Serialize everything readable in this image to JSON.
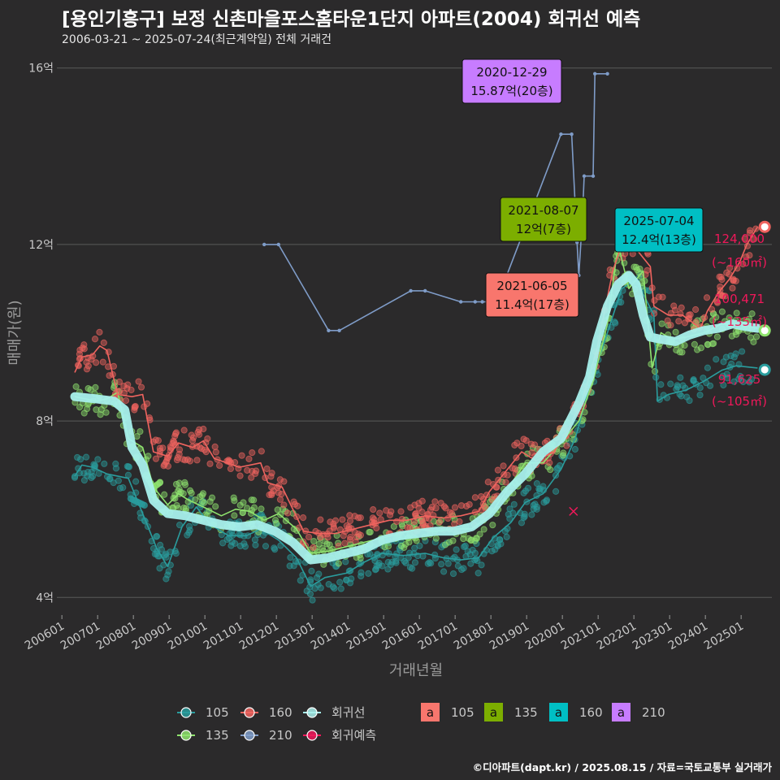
{
  "header": {
    "title": "[용인기흥구] 보정 신촌마을포스홈타운1단지 아파트(2004) 회귀선 예측",
    "subtitle": "2006-03-21 ~ 2025-07-24(최근계약일) 전체 거래건"
  },
  "footer": {
    "credit": "©디아파트(dapt.kr) / 2025.08.15 / 자료=국토교통부 실거래가"
  },
  "colors": {
    "background": "#2b2a2b",
    "grid": "#5a5a5a",
    "area_105": "#2a9d9e",
    "area_135": "#8fe36e",
    "area_160": "#f0645f",
    "area_210": "#7f9cc8",
    "regression": "#a8f0ec",
    "forecast": "#f0185a",
    "box_105": "#f8766d",
    "box_135": "#7cae00",
    "box_160": "#00bfc4",
    "box_210": "#c77cff"
  },
  "chart_data": {
    "type": "line",
    "title": "[용인기흥구] 보정 신촌마을포스홈타운1단지 아파트(2004) 회귀선 예측",
    "xlabel": "거래년월",
    "ylabel": "매매가(원)",
    "x_ticks": [
      "200601",
      "200701",
      "200801",
      "200901",
      "201001",
      "201101",
      "201201",
      "201301",
      "201401",
      "201501",
      "201601",
      "201701",
      "201801",
      "201901",
      "202001",
      "202101",
      "202201",
      "202301",
      "202401",
      "202501"
    ],
    "y_ticks": [
      {
        "value": 4,
        "label": "4억"
      },
      {
        "value": 8,
        "label": "8억"
      },
      {
        "value": 12,
        "label": "12억"
      },
      {
        "value": 16,
        "label": "16억"
      }
    ],
    "xlim": [
      2005.9,
      2025.9
    ],
    "ylim": [
      3.6,
      16.4
    ],
    "units": "억",
    "series": [
      {
        "name": "105",
        "color": "#2a9d9e",
        "points": [
          [
            2006.4,
            6.75
          ],
          [
            2006.6,
            7.0
          ],
          [
            2006.9,
            6.95
          ],
          [
            2007.3,
            6.8
          ],
          [
            2007.9,
            6.7
          ],
          [
            2008.7,
            5.1
          ],
          [
            2009.0,
            4.7
          ],
          [
            2009.4,
            5.6
          ],
          [
            2009.8,
            6.05
          ],
          [
            2010.2,
            5.65
          ],
          [
            2010.7,
            5.4
          ],
          [
            2011.2,
            5.4
          ],
          [
            2011.6,
            5.55
          ],
          [
            2012.1,
            5.3
          ],
          [
            2012.6,
            4.9
          ],
          [
            2013.0,
            4.25
          ],
          [
            2013.4,
            4.45
          ],
          [
            2014.0,
            4.55
          ],
          [
            2014.5,
            4.8
          ],
          [
            2015.0,
            5.0
          ],
          [
            2015.6,
            4.95
          ],
          [
            2016.2,
            5.0
          ],
          [
            2016.7,
            4.9
          ],
          [
            2017.2,
            4.85
          ],
          [
            2017.7,
            4.9
          ],
          [
            2018.1,
            5.35
          ],
          [
            2018.6,
            5.7
          ],
          [
            2019.0,
            6.15
          ],
          [
            2019.5,
            6.35
          ],
          [
            2020.0,
            6.9
          ],
          [
            2020.4,
            7.6
          ],
          [
            2020.8,
            8.8
          ],
          [
            2021.3,
            10.0
          ],
          [
            2021.7,
            11.0
          ],
          [
            2022.1,
            11.2
          ],
          [
            2022.6,
            10.4
          ],
          [
            2022.7,
            8.45
          ],
          [
            2023.0,
            8.6
          ],
          [
            2023.5,
            8.7
          ],
          [
            2024.0,
            8.9
          ],
          [
            2024.5,
            9.15
          ],
          [
            2024.9,
            9.25
          ],
          [
            2025.5,
            9.2
          ]
        ]
      },
      {
        "name": "135",
        "color": "#8fe36e",
        "points": [
          [
            2006.4,
            8.55
          ],
          [
            2006.7,
            8.5
          ],
          [
            2007.0,
            8.45
          ],
          [
            2007.3,
            8.5
          ],
          [
            2007.6,
            8.65
          ],
          [
            2007.9,
            7.6
          ],
          [
            2008.3,
            7.4
          ],
          [
            2008.6,
            6.5
          ],
          [
            2009.0,
            6.1
          ],
          [
            2009.3,
            6.35
          ],
          [
            2009.6,
            6.2
          ],
          [
            2010.0,
            6.05
          ],
          [
            2010.5,
            5.85
          ],
          [
            2010.9,
            6.0
          ],
          [
            2011.3,
            5.95
          ],
          [
            2011.7,
            5.75
          ],
          [
            2012.1,
            5.9
          ],
          [
            2012.6,
            5.55
          ],
          [
            2013.0,
            5.0
          ],
          [
            2013.5,
            5.05
          ],
          [
            2014.0,
            5.15
          ],
          [
            2014.5,
            5.25
          ],
          [
            2015.0,
            5.35
          ],
          [
            2015.5,
            5.45
          ],
          [
            2016.0,
            5.55
          ],
          [
            2016.5,
            5.5
          ],
          [
            2017.0,
            5.55
          ],
          [
            2017.5,
            5.55
          ],
          [
            2018.0,
            5.85
          ],
          [
            2018.5,
            6.45
          ],
          [
            2019.0,
            7.05
          ],
          [
            2019.5,
            7.05
          ],
          [
            2020.0,
            7.5
          ],
          [
            2020.5,
            8.0
          ],
          [
            2020.9,
            8.9
          ],
          [
            2021.3,
            10.2
          ],
          [
            2021.6,
            12.0
          ],
          [
            2021.9,
            11.0
          ],
          [
            2022.3,
            11.4
          ],
          [
            2022.55,
            9.2
          ],
          [
            2022.8,
            10.0
          ],
          [
            2023.1,
            9.85
          ],
          [
            2023.5,
            9.9
          ],
          [
            2024.0,
            10.0
          ],
          [
            2024.5,
            10.2
          ],
          [
            2024.9,
            10.2
          ],
          [
            2025.5,
            10.1
          ]
        ]
      },
      {
        "name": "160",
        "color": "#f0645f",
        "points": [
          [
            2006.4,
            9.1
          ],
          [
            2006.6,
            9.45
          ],
          [
            2006.9,
            9.5
          ],
          [
            2007.1,
            9.7
          ],
          [
            2007.3,
            9.6
          ],
          [
            2007.6,
            8.6
          ],
          [
            2008.0,
            8.55
          ],
          [
            2008.3,
            8.6
          ],
          [
            2008.6,
            7.3
          ],
          [
            2009.0,
            7.2
          ],
          [
            2009.3,
            7.5
          ],
          [
            2009.7,
            7.4
          ],
          [
            2010.0,
            7.55
          ],
          [
            2010.3,
            7.15
          ],
          [
            2011.0,
            6.95
          ],
          [
            2011.6,
            7.05
          ],
          [
            2011.8,
            6.6
          ],
          [
            2012.2,
            6.5
          ],
          [
            2012.8,
            5.5
          ],
          [
            2013.2,
            5.45
          ],
          [
            2013.7,
            5.45
          ],
          [
            2014.2,
            5.55
          ],
          [
            2014.7,
            5.65
          ],
          [
            2015.2,
            5.75
          ],
          [
            2015.7,
            5.75
          ],
          [
            2016.2,
            5.85
          ],
          [
            2016.7,
            5.8
          ],
          [
            2017.2,
            5.85
          ],
          [
            2017.7,
            5.95
          ],
          [
            2018.0,
            6.4
          ],
          [
            2018.4,
            6.8
          ],
          [
            2018.9,
            7.3
          ],
          [
            2019.3,
            7.1
          ],
          [
            2019.8,
            7.3
          ],
          [
            2020.2,
            7.8
          ],
          [
            2020.6,
            8.5
          ],
          [
            2021.0,
            9.6
          ],
          [
            2021.3,
            10.8
          ],
          [
            2021.45,
            11.4
          ],
          [
            2021.7,
            12.0
          ],
          [
            2022.0,
            12.0
          ],
          [
            2022.5,
            11.5
          ],
          [
            2022.6,
            10.6
          ],
          [
            2023.0,
            10.4
          ],
          [
            2023.4,
            10.4
          ],
          [
            2023.9,
            10.1
          ],
          [
            2024.1,
            10.5
          ],
          [
            2024.4,
            10.9
          ],
          [
            2024.7,
            11.2
          ],
          [
            2025.0,
            11.6
          ],
          [
            2025.2,
            12.0
          ],
          [
            2025.5,
            12.4
          ]
        ]
      },
      {
        "name": "210",
        "color": "#7f9cc8",
        "points": [
          [
            2011.7,
            12.0
          ],
          [
            2012.1,
            12.0
          ],
          [
            2013.5,
            10.05
          ],
          [
            2013.8,
            10.05
          ],
          [
            2015.8,
            10.95
          ],
          [
            2016.2,
            10.95
          ],
          [
            2017.2,
            10.7
          ],
          [
            2017.6,
            10.7
          ],
          [
            2017.8,
            10.7
          ],
          [
            2018.2,
            10.7
          ],
          [
            2020.0,
            14.5
          ],
          [
            2020.3,
            14.5
          ],
          [
            2020.45,
            12.05
          ],
          [
            2020.5,
            11.3
          ],
          [
            2020.6,
            12.6
          ],
          [
            2020.65,
            13.55
          ],
          [
            2020.9,
            13.55
          ],
          [
            2020.95,
            15.87
          ],
          [
            2021.3,
            15.87
          ]
        ]
      }
    ],
    "regression": {
      "name": "회귀선",
      "color": "#a8f0ec",
      "points": [
        [
          2006.4,
          8.55
        ],
        [
          2007.0,
          8.5
        ],
        [
          2007.5,
          8.45
        ],
        [
          2007.8,
          8.25
        ],
        [
          2008.0,
          7.4
        ],
        [
          2008.3,
          7.0
        ],
        [
          2008.6,
          6.2
        ],
        [
          2009.0,
          5.9
        ],
        [
          2009.5,
          5.85
        ],
        [
          2010.0,
          5.75
        ],
        [
          2010.5,
          5.65
        ],
        [
          2011.0,
          5.6
        ],
        [
          2011.5,
          5.65
        ],
        [
          2012.0,
          5.5
        ],
        [
          2012.5,
          5.25
        ],
        [
          2013.0,
          4.85
        ],
        [
          2013.5,
          4.9
        ],
        [
          2014.0,
          5.0
        ],
        [
          2014.5,
          5.1
        ],
        [
          2015.0,
          5.3
        ],
        [
          2015.5,
          5.4
        ],
        [
          2016.0,
          5.45
        ],
        [
          2016.5,
          5.5
        ],
        [
          2017.0,
          5.5
        ],
        [
          2017.5,
          5.6
        ],
        [
          2018.0,
          5.9
        ],
        [
          2018.5,
          6.4
        ],
        [
          2019.0,
          6.8
        ],
        [
          2019.5,
          7.3
        ],
        [
          2020.0,
          7.6
        ],
        [
          2020.5,
          8.4
        ],
        [
          2020.8,
          9.0
        ],
        [
          2021.0,
          9.8
        ],
        [
          2021.3,
          10.6
        ],
        [
          2021.6,
          11.1
        ],
        [
          2021.9,
          11.3
        ],
        [
          2022.1,
          11.1
        ],
        [
          2022.3,
          10.4
        ],
        [
          2022.5,
          9.9
        ],
        [
          2022.8,
          9.85
        ],
        [
          2023.2,
          9.8
        ],
        [
          2023.6,
          9.95
        ],
        [
          2024.0,
          10.05
        ],
        [
          2024.4,
          10.1
        ],
        [
          2024.8,
          10.2
        ],
        [
          2025.1,
          10.15
        ],
        [
          2025.5,
          10.1
        ]
      ]
    },
    "forecast": [
      {
        "area": "160",
        "value": "124,000",
        "area_label": "(~160㎡)",
        "point": [
          2025.7,
          12.4
        ]
      },
      {
        "area": "135",
        "value": "100,471",
        "area_label": "(~135㎡)",
        "point": [
          2025.7,
          10.05
        ]
      },
      {
        "area": "105",
        "value": "91,625",
        "area_label": "(~105㎡)",
        "point": [
          2025.7,
          9.16
        ]
      }
    ],
    "callouts": [
      {
        "date": "2020-12-29",
        "price": "15.87억(20층)",
        "area": "210",
        "bg": "#c77cff",
        "anchor": [
          2020.95,
          15.87
        ]
      },
      {
        "date": "2021-08-07",
        "price": "12억(7층)",
        "area": "135",
        "bg": "#7cae00",
        "anchor": [
          2021.6,
          12.0
        ]
      },
      {
        "date": "2025-07-04",
        "price": "12.4억(13층)",
        "area": "160",
        "bg": "#00bfc4",
        "anchor": [
          2025.5,
          12.4
        ]
      },
      {
        "date": "2021-06-05",
        "price": "11.4억(17층)",
        "area": "105",
        "bg": "#f8766d",
        "anchor": [
          2021.45,
          11.4
        ]
      }
    ],
    "legend": {
      "series": [
        {
          "label": "105",
          "color": "#2a9d9e"
        },
        {
          "label": "160",
          "color": "#f0645f"
        },
        {
          "label": "회귀선",
          "color": "#a8f0ec"
        },
        {
          "label": "135",
          "color": "#8fe36e"
        },
        {
          "label": "210",
          "color": "#7f9cc8"
        },
        {
          "label": "회귀예측",
          "color": "#f0185a"
        }
      ],
      "boxes": [
        {
          "glyph": "a",
          "label": "105",
          "color": "#f8766d"
        },
        {
          "glyph": "a",
          "label": "135",
          "color": "#7cae00"
        },
        {
          "glyph": "a",
          "label": "160",
          "color": "#00bfc4"
        },
        {
          "glyph": "a",
          "label": "210",
          "color": "#c77cff"
        }
      ]
    }
  }
}
